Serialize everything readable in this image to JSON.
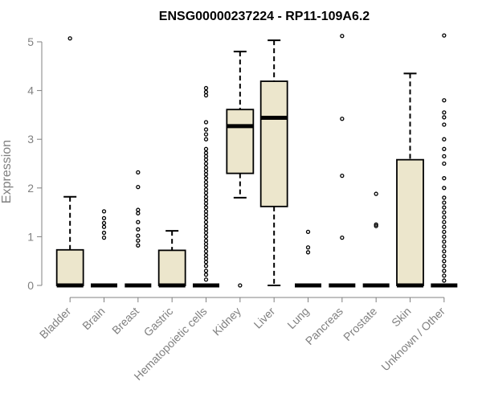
{
  "chart_data": {
    "type": "boxplot",
    "title": "ENSG00000237224 - RP11-109A6.2",
    "ylabel": "Expression",
    "xlabel": "",
    "ylim": [
      0,
      5.15
    ],
    "yticks": [
      0,
      1,
      2,
      3,
      4,
      5
    ],
    "grid": false,
    "legend": "none",
    "colors": {
      "box_fill": "#ece6cc",
      "stroke": "#000000",
      "axis": "#808080"
    },
    "categories": [
      "Bladder",
      "Brain",
      "Breast",
      "Gastric",
      "Hematopoietic cells",
      "Kidney",
      "Liver",
      "Lung",
      "Pancreas",
      "Prostate",
      "Skin",
      "Unknown / Other"
    ],
    "boxes": [
      {
        "name": "Bladder",
        "min": 0,
        "q1": 0,
        "median": 0,
        "q3": 0.73,
        "max": 1.82,
        "outliers": [
          5.07
        ]
      },
      {
        "name": "Brain",
        "min": 0,
        "q1": 0,
        "median": 0,
        "q3": 0,
        "max": 0,
        "outliers": [
          0.98,
          1.08,
          1.2,
          1.28,
          1.38,
          1.52
        ]
      },
      {
        "name": "Breast",
        "min": 0,
        "q1": 0,
        "median": 0,
        "q3": 0,
        "max": 0,
        "outliers": [
          0.82,
          0.92,
          1.02,
          1.15,
          1.3,
          1.48,
          1.55,
          2.02,
          2.32
        ]
      },
      {
        "name": "Gastric",
        "min": 0,
        "q1": 0,
        "median": 0,
        "q3": 0.72,
        "max": 1.12,
        "outliers": []
      },
      {
        "name": "Hematopoietic cells",
        "min": 0,
        "q1": 0,
        "median": 0,
        "q3": 0,
        "max": 0,
        "outliers": [
          0.12,
          0.22,
          0.3,
          0.4,
          0.48,
          0.55,
          0.62,
          0.7,
          0.78,
          0.85,
          0.92,
          1.0,
          1.08,
          1.15,
          1.22,
          1.3,
          1.38,
          1.45,
          1.52,
          1.6,
          1.68,
          1.75,
          1.82,
          1.9,
          1.97,
          2.05,
          2.12,
          2.2,
          2.28,
          2.35,
          2.42,
          2.5,
          2.58,
          2.65,
          2.72,
          2.8,
          3.0,
          3.1,
          3.2,
          3.35,
          3.9,
          3.97,
          4.05
        ]
      },
      {
        "name": "Kidney",
        "min": 1.8,
        "q1": 2.3,
        "median": 3.27,
        "q3": 3.61,
        "max": 4.8,
        "outliers": [
          0
        ]
      },
      {
        "name": "Liver",
        "min": 0,
        "q1": 1.62,
        "median": 3.44,
        "q3": 4.19,
        "max": 5.03,
        "outliers": []
      },
      {
        "name": "Lung",
        "min": 0,
        "q1": 0,
        "median": 0,
        "q3": 0,
        "max": 0,
        "outliers": [
          0.68,
          0.78,
          1.1
        ]
      },
      {
        "name": "Pancreas",
        "min": 0,
        "q1": 0,
        "median": 0,
        "q3": 0,
        "max": 0,
        "outliers": [
          0.98,
          2.25,
          3.42,
          5.12
        ]
      },
      {
        "name": "Prostate",
        "min": 0,
        "q1": 0,
        "median": 0,
        "q3": 0,
        "max": 0,
        "outliers": [
          1.22,
          1.25,
          1.88
        ]
      },
      {
        "name": "Skin",
        "min": 0,
        "q1": 0,
        "median": 0,
        "q3": 2.58,
        "max": 4.35,
        "outliers": []
      },
      {
        "name": "Unknown / Other",
        "min": 0,
        "q1": 0,
        "median": 0,
        "q3": 0,
        "max": 0,
        "outliers": [
          0.1,
          0.2,
          0.3,
          0.4,
          0.5,
          0.6,
          0.7,
          0.8,
          0.9,
          1.0,
          1.1,
          1.2,
          1.3,
          1.4,
          1.5,
          1.6,
          1.7,
          1.8,
          2.0,
          2.2,
          2.5,
          2.65,
          2.8,
          3.0,
          3.3,
          3.45,
          3.55,
          3.8,
          5.13
        ]
      }
    ]
  }
}
